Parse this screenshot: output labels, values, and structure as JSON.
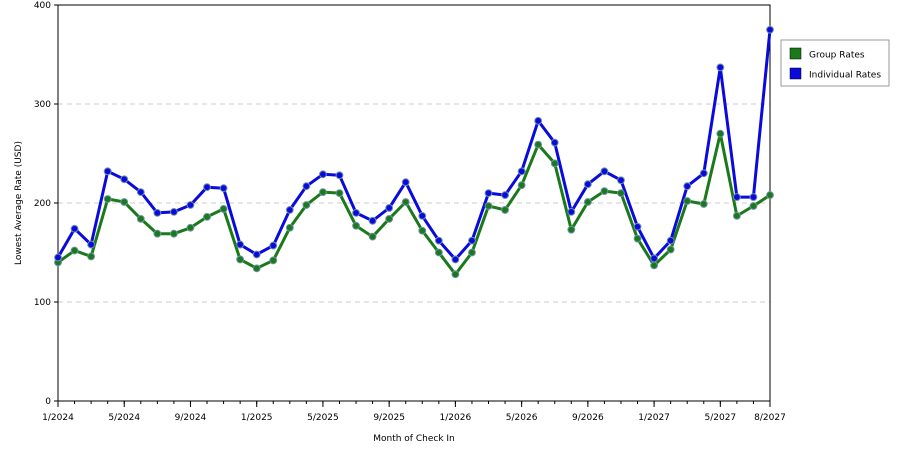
{
  "chart_data": {
    "type": "line",
    "xlabel": "Month of Check In",
    "ylabel": "Lowest Average Rate (USD)",
    "ylim": [
      0,
      400
    ],
    "y_ticks": [
      0,
      100,
      200,
      300,
      400
    ],
    "x_tick_labels": [
      "1/2024",
      "5/2024",
      "9/2024",
      "1/2025",
      "5/2025",
      "9/2025",
      "1/2026",
      "5/2026",
      "9/2026",
      "1/2027",
      "5/2027",
      "8/2027"
    ],
    "x": [
      "1/2024",
      "2/2024",
      "3/2024",
      "4/2024",
      "5/2024",
      "6/2024",
      "7/2024",
      "8/2024",
      "9/2024",
      "10/2024",
      "11/2024",
      "12/2024",
      "1/2025",
      "2/2025",
      "3/2025",
      "4/2025",
      "5/2025",
      "6/2025",
      "7/2025",
      "8/2025",
      "9/2025",
      "10/2025",
      "11/2025",
      "12/2025",
      "1/2026",
      "2/2026",
      "3/2026",
      "4/2026",
      "5/2026",
      "6/2026",
      "7/2026",
      "8/2026",
      "9/2026",
      "10/2026",
      "11/2026",
      "12/2026",
      "1/2027",
      "2/2027",
      "3/2027",
      "4/2027",
      "5/2027",
      "6/2027",
      "7/2027",
      "8/2027"
    ],
    "series": [
      {
        "name": "Group Rates",
        "color": "#1a7a1a",
        "values": [
          140,
          152,
          146,
          204,
          201,
          184,
          169,
          169,
          175,
          186,
          194,
          143,
          134,
          142,
          175,
          198,
          211,
          210,
          177,
          166,
          184,
          201,
          172,
          150,
          128,
          150,
          197,
          193,
          218,
          259,
          240,
          173,
          201,
          212,
          210,
          164,
          137,
          153,
          202,
          199,
          270,
          187,
          197,
          208
        ]
      },
      {
        "name": "Individual Rates",
        "color": "#0a0adc",
        "values": [
          145,
          174,
          158,
          232,
          224,
          211,
          190,
          191,
          198,
          216,
          215,
          158,
          148,
          157,
          193,
          217,
          229,
          228,
          190,
          182,
          195,
          221,
          187,
          162,
          143,
          162,
          210,
          208,
          232,
          283,
          261,
          191,
          219,
          232,
          223,
          176,
          144,
          162,
          217,
          230,
          337,
          206,
          206,
          375
        ]
      }
    ],
    "legend_position": "top-right",
    "grid": true
  }
}
